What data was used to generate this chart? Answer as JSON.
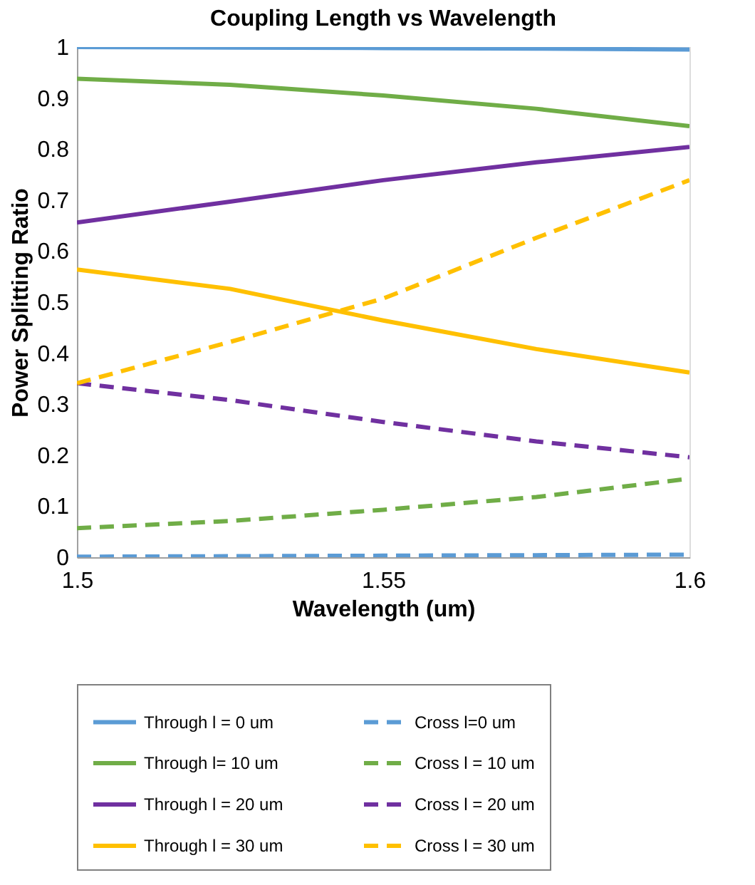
{
  "chart_data": {
    "type": "line",
    "title": "Coupling Length vs Wavelength",
    "xlabel": "Wavelength (um)",
    "ylabel": "Power Splitting Ratio",
    "x": [
      1.5,
      1.525,
      1.55,
      1.575,
      1.6
    ],
    "xlim": [
      1.5,
      1.6
    ],
    "xticks": [
      1.5,
      1.55,
      1.6
    ],
    "ylim": [
      0,
      1
    ],
    "yticks": [
      0,
      0.1,
      0.2,
      0.3,
      0.4,
      0.5,
      0.6,
      0.7,
      0.8,
      0.9,
      1
    ],
    "grid": false,
    "legend": "bottom",
    "marker": "none",
    "series": [
      {
        "name": "Through l = 0 um",
        "color": "#5b9bd5",
        "line_style": "solid",
        "values": [
          1.0,
          0.999,
          0.998,
          0.997,
          0.995
        ]
      },
      {
        "name": "Cross l=0 um",
        "color": "#5b9bd5",
        "line_style": "dashed",
        "values": [
          0.001,
          0.002,
          0.003,
          0.004,
          0.005
        ]
      },
      {
        "name": "Through l= 10 um",
        "color": "#70ad47",
        "line_style": "solid",
        "values": [
          0.938,
          0.926,
          0.905,
          0.879,
          0.845
        ]
      },
      {
        "name": "Cross l = 10 um",
        "color": "#70ad47",
        "line_style": "dashed",
        "values": [
          0.057,
          0.071,
          0.093,
          0.118,
          0.154
        ]
      },
      {
        "name": "Through l = 20 um",
        "color": "#7030a0",
        "line_style": "solid",
        "values": [
          0.656,
          0.697,
          0.739,
          0.774,
          0.804
        ]
      },
      {
        "name": "Cross l = 20 um",
        "color": "#7030a0",
        "line_style": "dashed",
        "values": [
          0.341,
          0.308,
          0.265,
          0.227,
          0.196
        ]
      },
      {
        "name": "Through l = 30 um",
        "color": "#ffc000",
        "line_style": "solid",
        "values": [
          0.564,
          0.526,
          0.464,
          0.408,
          0.362
        ]
      },
      {
        "name": "Cross l = 30 um",
        "color": "#ffc000",
        "line_style": "dashed",
        "values": [
          0.341,
          0.422,
          0.507,
          0.626,
          0.739
        ]
      }
    ]
  }
}
